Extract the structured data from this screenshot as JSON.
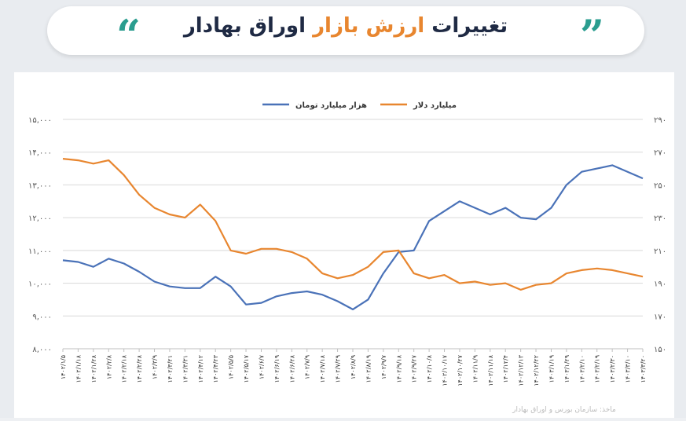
{
  "header": {
    "title_part1": "تغییرات ",
    "title_accent": "ارزش بازار",
    "title_part2": " اوراق بهادار",
    "quote_left": "“",
    "quote_right": "”",
    "accent_color": "#e8862f",
    "quote_color": "#2a9d8f"
  },
  "footer": {
    "source": "ماخذ: سازمان بورس و اوراق بهادار"
  },
  "chart_data": {
    "type": "line",
    "legend_placement": "top-center",
    "grid": true,
    "left_axis": {
      "ylim": [
        8000,
        15000
      ],
      "ticks": [
        8000,
        9000,
        10000,
        11000,
        12000,
        13000,
        14000,
        15000
      ],
      "tick_labels": [
        "۸,۰۰۰",
        "۹,۰۰۰",
        "۱۰,۰۰۰",
        "۱۱,۰۰۰",
        "۱۲,۰۰۰",
        "۱۳,۰۰۰",
        "۱۴,۰۰۰",
        "۱۵,۰۰۰"
      ]
    },
    "right_axis": {
      "ylim": [
        150,
        290
      ],
      "ticks": [
        150,
        170,
        190,
        210,
        230,
        250,
        270,
        290
      ],
      "tick_labels": [
        "۱۵۰",
        "۱۷۰",
        "۱۹۰",
        "۲۱۰",
        "۲۳۰",
        "۲۵۰",
        "۲۷۰",
        "۲۹۰"
      ]
    },
    "categories": [
      "۱۴۰۲/۱/۵",
      "۱۴۰۲/۱/۱۸",
      "۱۴۰۲/۱/۲۸",
      "۱۴۰۲/۲/۸",
      "۱۴۰۲/۲/۱۸",
      "۱۴۰۲/۲/۲۸",
      "۱۴۰۲/۳/۹",
      "۱۴۰۲/۳/۲۱",
      "۱۴۰۲/۳/۳۱",
      "۱۴۰۲/۴/۱۲",
      "۱۴۰۲/۴/۲۳",
      "۱۴۰۲/۵/۵",
      "۱۴۰۲/۵/۱۷",
      "۱۴۰۲/۶/۷",
      "۱۴۰۲/۶/۱۹",
      "۱۴۰۲/۶/۲۸",
      "۱۴۰۲/۷/۹",
      "۱۴۰۲/۷/۱۸",
      "۱۴۰۲/۷/۲۹",
      "۱۴۰۲/۸/۹",
      "۱۴۰۲/۸/۱۹",
      "۱۴۰۲/۹/۷",
      "۱۴۰۲/۹/۱۸",
      "۱۴۰۲/۹/۲۷",
      "۱۴۰۲/۱۰/۸",
      "۱۴۰۲/۱۰/۱۷",
      "۱۴۰۲/۱۰/۲۷",
      "۱۴۰۲/۱۱/۹",
      "۱۴۰۲/۱۱/۱۸",
      "۱۴۰۲/۱۲/۴",
      "۱۴۰۲/۱۲/۱۳",
      "۱۴۰۲/۱۲/۲۲",
      "۱۴۰۳/۱/۱۹",
      "۱۴۰۳/۱/۲۹",
      "۱۴۰۳/۲/۱۰",
      "۱۴۰۳/۲/۱۹",
      "۱۴۰۳/۲/۳۰",
      "۱۴۰۳/۳/۱۰",
      "۱۴۰۳/۳/۲۰"
    ],
    "series": [
      {
        "name": "هزار میلیارد تومان",
        "axis": "left",
        "color": "#4a72b8",
        "values": [
          10700,
          10650,
          10500,
          10750,
          10600,
          10350,
          10050,
          9900,
          9850,
          9850,
          10200,
          9900,
          9350,
          9400,
          9600,
          9700,
          9750,
          9650,
          9450,
          9200,
          9500,
          10300,
          10950,
          11000,
          11900,
          12200,
          12500,
          12300,
          12100,
          12300,
          12000,
          11950,
          12300,
          13000,
          13400,
          13500,
          13600,
          13400,
          13200
        ]
      },
      {
        "name": "میلیارد دلار",
        "axis": "right",
        "color": "#e8862f",
        "values": [
          266,
          265,
          263,
          265,
          256,
          244,
          236,
          232,
          230,
          238,
          228,
          210,
          208,
          211,
          211,
          209,
          205,
          196,
          193,
          195,
          200,
          209,
          210,
          196,
          193,
          195,
          190,
          191,
          189,
          190,
          186,
          189,
          190,
          196,
          198,
          199,
          198,
          196,
          194
        ]
      }
    ]
  }
}
